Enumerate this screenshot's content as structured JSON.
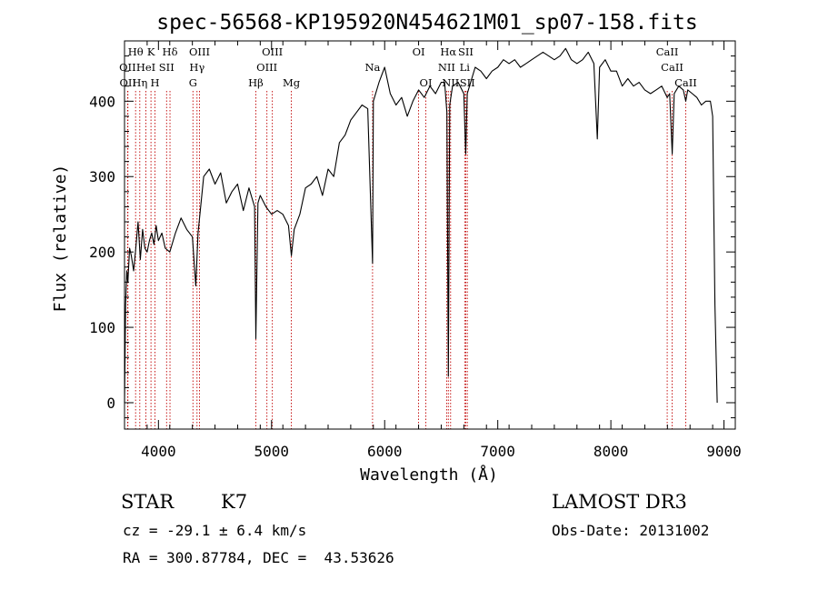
{
  "chart_data": {
    "type": "line",
    "title": "spec-56568-KP195920N454621M01_sp07-158.fits",
    "xlabel": "Wavelength (Å)",
    "ylabel": "Flux (relative)",
    "xlim": [
      3700,
      9100
    ],
    "ylim": [
      -35,
      480
    ],
    "xticks": [
      4000,
      5000,
      6000,
      7000,
      8000,
      9000
    ],
    "yticks": [
      0,
      100,
      200,
      300,
      400
    ],
    "grid": false,
    "series": [
      {
        "x": [
          3700,
          3710,
          3720,
          3730,
          3745,
          3760,
          3780,
          3800,
          3820,
          3840,
          3860,
          3880,
          3900,
          3920,
          3940,
          3960,
          3980,
          4000,
          4030,
          4060,
          4100,
          4150,
          4200,
          4250,
          4300,
          4330,
          4350,
          4400,
          4450,
          4500,
          4550,
          4600,
          4650,
          4700,
          4750,
          4800,
          4850,
          4861,
          4880,
          4900,
          4950,
          5000,
          5050,
          5100,
          5150,
          5175,
          5200,
          5250,
          5300,
          5350,
          5400,
          5450,
          5500,
          5550,
          5600,
          5650,
          5700,
          5750,
          5800,
          5850,
          5893,
          5900,
          5950,
          6000,
          6050,
          6100,
          6150,
          6200,
          6250,
          6300,
          6350,
          6400,
          6450,
          6500,
          6530,
          6550,
          6563,
          6575,
          6600,
          6650,
          6700,
          6717,
          6730,
          6750,
          6800,
          6850,
          6900,
          6950,
          7000,
          7050,
          7100,
          7150,
          7200,
          7250,
          7300,
          7350,
          7400,
          7450,
          7500,
          7550,
          7600,
          7650,
          7700,
          7750,
          7800,
          7850,
          7880,
          7900,
          7950,
          8000,
          8050,
          8100,
          8150,
          8200,
          8250,
          8300,
          8350,
          8400,
          8450,
          8498,
          8520,
          8542,
          8560,
          8600,
          8640,
          8662,
          8680,
          8720,
          8760,
          8800,
          8840,
          8880,
          8900,
          8920,
          8940
        ],
        "y": [
          0,
          130,
          175,
          160,
          205,
          195,
          175,
          205,
          240,
          190,
          230,
          205,
          200,
          215,
          225,
          210,
          235,
          215,
          225,
          205,
          200,
          225,
          245,
          230,
          220,
          155,
          225,
          300,
          310,
          290,
          305,
          265,
          280,
          290,
          255,
          285,
          260,
          85,
          265,
          275,
          260,
          250,
          255,
          250,
          235,
          195,
          230,
          250,
          285,
          290,
          300,
          275,
          310,
          300,
          345,
          355,
          375,
          385,
          395,
          390,
          185,
          400,
          425,
          445,
          410,
          395,
          405,
          380,
          400,
          415,
          405,
          420,
          410,
          425,
          425,
          385,
          35,
          395,
          420,
          425,
          410,
          330,
          410,
          420,
          445,
          440,
          430,
          440,
          445,
          455,
          450,
          455,
          445,
          450,
          455,
          460,
          465,
          460,
          455,
          460,
          470,
          455,
          450,
          455,
          465,
          450,
          350,
          445,
          455,
          440,
          440,
          420,
          430,
          420,
          425,
          415,
          410,
          415,
          420,
          405,
          410,
          330,
          410,
          420,
          415,
          400,
          415,
          410,
          405,
          395,
          400,
          400,
          380,
          130,
          0
        ]
      }
    ],
    "spectral_lines": [
      {
        "label": "Hθ",
        "wavelength": 3798,
        "row": 1
      },
      {
        "label": "OII",
        "wavelength": 3727,
        "row": 2
      },
      {
        "label": "OII",
        "wavelength": 3730,
        "row": 3
      },
      {
        "label": "K",
        "wavelength": 3934,
        "row": 1
      },
      {
        "label": "HeI",
        "wavelength": 3889,
        "row": 2
      },
      {
        "label": "Hη",
        "wavelength": 3835,
        "row": 3
      },
      {
        "label": "Hδ",
        "wavelength": 4102,
        "row": 1
      },
      {
        "label": "SII",
        "wavelength": 4072,
        "row": 2
      },
      {
        "label": "H",
        "wavelength": 3969,
        "row": 3
      },
      {
        "label": "OIII",
        "wavelength": 4363,
        "row": 1
      },
      {
        "label": "Hγ",
        "wavelength": 4341,
        "row": 2
      },
      {
        "label": "G",
        "wavelength": 4305,
        "row": 3
      },
      {
        "label": "OIII",
        "wavelength": 5007,
        "row": 1
      },
      {
        "label": "OIII",
        "wavelength": 4959,
        "row": 2
      },
      {
        "label": "Hβ",
        "wavelength": 4861,
        "row": 3
      },
      {
        "label": "Mg",
        "wavelength": 5175,
        "row": 3
      },
      {
        "label": "Na",
        "wavelength": 5893,
        "row": 2
      },
      {
        "label": "OI",
        "wavelength": 6300,
        "row": 1
      },
      {
        "label": "OI",
        "wavelength": 6364,
        "row": 3
      },
      {
        "label": "Hα",
        "wavelength": 6563,
        "row": 1
      },
      {
        "label": "SII",
        "wavelength": 6717,
        "row": 1
      },
      {
        "label": "NII",
        "wavelength": 6548,
        "row": 2
      },
      {
        "label": "NII",
        "wavelength": 6583,
        "row": 3
      },
      {
        "label": "SII",
        "wavelength": 6731,
        "row": 3
      },
      {
        "label": "Li",
        "wavelength": 6708,
        "row": 2
      },
      {
        "label": "CaII",
        "wavelength": 8498,
        "row": 1
      },
      {
        "label": "CaII",
        "wavelength": 8542,
        "row": 2
      },
      {
        "label": "CaII",
        "wavelength": 8662,
        "row": 3
      }
    ]
  },
  "info": {
    "class": "STAR",
    "subclass": "K7",
    "cz": "cz = -29.1 ± 6.4 km/s",
    "radec": "RA = 300.87784, DEC =  43.53626",
    "survey": "LAMOST DR3",
    "obsdate": "Obs-Date: 20131002"
  }
}
